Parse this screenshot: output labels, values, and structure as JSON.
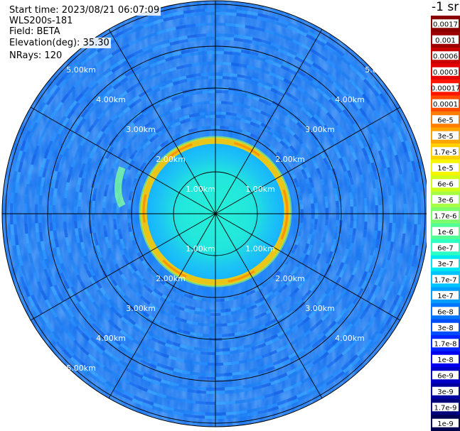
{
  "header": {
    "start_time": "Start time: 2023/08/21 06:07:09",
    "instrument": "WLS200s-181",
    "field": "Field: BETA",
    "elevation": "Elevation(deg): 35.30",
    "nrays": "NRays: 120"
  },
  "unit_label": "-1 sr",
  "range_rings": {
    "spokes": 12,
    "labels_upper": [
      "1.00km",
      "2.00km",
      "3.00km",
      "4.00km",
      "5.00km"
    ],
    "labels_lower": [
      "1.00km",
      "2.00km",
      "3.00km",
      "4.00km",
      "5.00km"
    ]
  },
  "colorbar": {
    "labels": [
      "0.0017",
      "0.001",
      "0.0006",
      "0.0003",
      "0.00017",
      "0.0001",
      "6e-5",
      "3e-5",
      "1.7e-5",
      "1e-5",
      "6e-6",
      "3e-6",
      "1.7e-6",
      "1e-6",
      "6e-7",
      "3e-7",
      "1.7e-7",
      "1e-7",
      "6e-8",
      "3e-8",
      "1.7e-8",
      "1e-8",
      "6e-9",
      "3e-9",
      "1.7e-9",
      "1e-9"
    ],
    "colors": [
      "#8a0000",
      "#9c0000",
      "#c80000",
      "#e40000",
      "#ff1500",
      "#ff4a00",
      "#ff7d00",
      "#ffa500",
      "#ffd000",
      "#f5f500",
      "#d2ff18",
      "#a6ff42",
      "#7dff6c",
      "#52ff96",
      "#2bffc2",
      "#00e8ef",
      "#00c4ff",
      "#009cff",
      "#0076ff",
      "#004dff",
      "#0024ff",
      "#0000f0",
      "#0000c8",
      "#0000a0",
      "#000078",
      "#000050"
    ]
  }
}
